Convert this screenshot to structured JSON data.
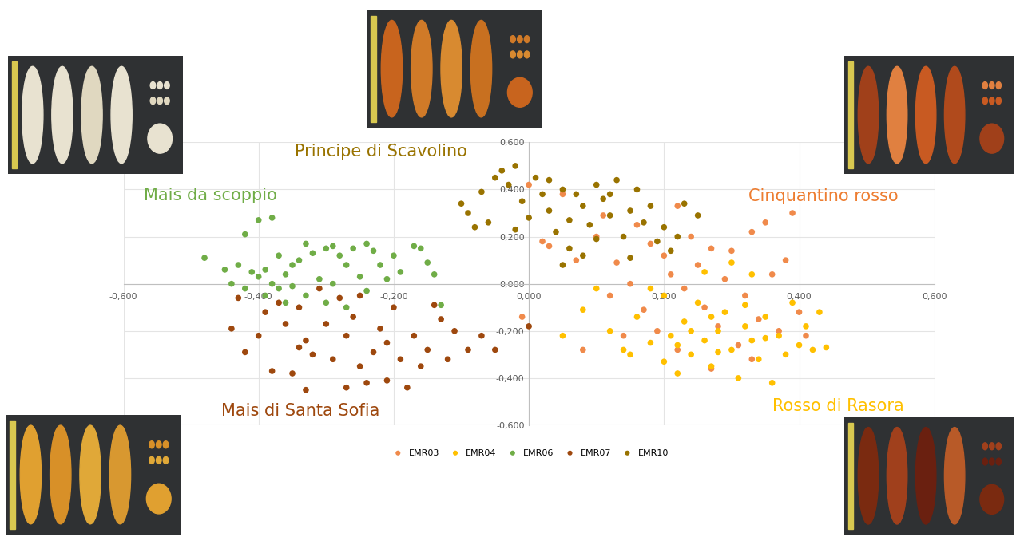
{
  "chart_data": {
    "type": "scatter",
    "xlim": [
      -0.6,
      0.6
    ],
    "ylim": [
      -0.6,
      0.6
    ],
    "xticks": [
      {
        "value": -0.6,
        "label": "-0,600"
      },
      {
        "value": -0.4,
        "label": "-0,400"
      },
      {
        "value": -0.2,
        "label": "-0,200"
      },
      {
        "value": 0.0,
        "label": "0,000"
      },
      {
        "value": 0.2,
        "label": "0,200"
      },
      {
        "value": 0.4,
        "label": "0,400"
      },
      {
        "value": 0.6,
        "label": "0,600"
      }
    ],
    "yticks": [
      {
        "value": -0.6,
        "label": "-0,600"
      },
      {
        "value": -0.4,
        "label": "-0,400"
      },
      {
        "value": -0.2,
        "label": "-0,200"
      },
      {
        "value": 0.0,
        "label": "0,000"
      },
      {
        "value": 0.2,
        "label": "0,200"
      },
      {
        "value": 0.4,
        "label": "0,400"
      },
      {
        "value": 0.6,
        "label": "0,600"
      }
    ],
    "grid": true,
    "legend": "lower center",
    "marker": "o",
    "annotations": [
      {
        "text": "Mais da scoppio",
        "color": "#70ad47"
      },
      {
        "text": "Principe di Scavolino",
        "color": "#997300"
      },
      {
        "text": "Cinquantino rosso",
        "color": "#ed7d31"
      },
      {
        "text": "Mais di Santa Sofia",
        "color": "#9e480e"
      },
      {
        "text": "Rosso di Rasora",
        "color": "#ffc000"
      }
    ],
    "series": [
      {
        "name": "EMR03",
        "color": "#f08a4b",
        "x": [
          0.0,
          0.02,
          0.05,
          0.07,
          0.08,
          0.1,
          0.12,
          0.13,
          0.15,
          0.17,
          0.18,
          0.2,
          0.21,
          0.22,
          0.23,
          0.24,
          0.25,
          0.26,
          0.27,
          0.28,
          0.29,
          0.3,
          0.31,
          0.32,
          0.33,
          0.34,
          0.35,
          0.36,
          0.37,
          0.38,
          0.39,
          0.4,
          0.41,
          0.19,
          0.22,
          0.16,
          0.11,
          -0.01,
          0.03,
          0.27,
          0.33,
          0.14
        ],
        "values": [
          0.42,
          0.18,
          0.38,
          0.1,
          -0.28,
          0.2,
          -0.05,
          0.09,
          0.0,
          -0.11,
          0.17,
          0.12,
          0.04,
          0.33,
          -0.02,
          0.2,
          0.08,
          -0.1,
          0.15,
          -0.18,
          0.02,
          0.14,
          -0.26,
          -0.05,
          0.22,
          -0.15,
          0.26,
          0.04,
          -0.2,
          0.1,
          0.3,
          -0.12,
          -0.22,
          -0.2,
          -0.28,
          0.25,
          0.29,
          -0.14,
          0.16,
          -0.36,
          -0.32,
          -0.22
        ]
      },
      {
        "name": "EMR04",
        "color": "#ffc000",
        "x": [
          0.05,
          0.08,
          0.1,
          0.12,
          0.14,
          0.16,
          0.18,
          0.2,
          0.21,
          0.22,
          0.23,
          0.24,
          0.25,
          0.26,
          0.27,
          0.28,
          0.29,
          0.3,
          0.31,
          0.32,
          0.33,
          0.34,
          0.35,
          0.36,
          0.37,
          0.38,
          0.39,
          0.4,
          0.41,
          0.42,
          0.43,
          0.44,
          0.3,
          0.26,
          0.2,
          0.15,
          0.24,
          0.28,
          0.32,
          0.35,
          0.22,
          0.27,
          0.33,
          0.18
        ],
        "values": [
          -0.22,
          -0.11,
          -0.02,
          -0.2,
          -0.28,
          -0.14,
          -0.25,
          -0.33,
          -0.22,
          -0.38,
          -0.16,
          -0.3,
          -0.08,
          -0.24,
          -0.35,
          -0.2,
          -0.12,
          -0.28,
          -0.4,
          -0.18,
          -0.24,
          -0.32,
          -0.14,
          -0.42,
          -0.22,
          -0.3,
          -0.08,
          -0.26,
          -0.18,
          -0.28,
          -0.12,
          -0.27,
          0.09,
          0.05,
          -0.05,
          -0.3,
          -0.2,
          -0.29,
          -0.09,
          -0.23,
          -0.26,
          -0.14,
          0.04,
          -0.02
        ]
      },
      {
        "name": "EMR06",
        "color": "#70ad47",
        "x": [
          -0.48,
          -0.44,
          -0.42,
          -0.4,
          -0.38,
          -0.41,
          -0.4,
          -0.39,
          -0.38,
          -0.37,
          -0.36,
          -0.35,
          -0.34,
          -0.33,
          -0.32,
          -0.31,
          -0.3,
          -0.29,
          -0.28,
          -0.27,
          -0.26,
          -0.25,
          -0.24,
          -0.23,
          -0.22,
          -0.21,
          -0.2,
          -0.19,
          -0.17,
          -0.16,
          -0.15,
          -0.14,
          -0.13,
          -0.43,
          -0.42,
          -0.39,
          -0.36,
          -0.33,
          -0.3,
          -0.27,
          -0.45,
          -0.37,
          -0.35,
          -0.29,
          -0.24
        ],
        "values": [
          0.11,
          0.0,
          0.21,
          0.27,
          0.28,
          0.05,
          0.03,
          0.06,
          0.0,
          -0.02,
          0.04,
          0.08,
          0.1,
          0.17,
          0.13,
          0.02,
          0.15,
          0.16,
          0.12,
          0.08,
          0.15,
          0.03,
          0.17,
          0.14,
          0.08,
          0.02,
          0.12,
          0.05,
          0.16,
          0.15,
          0.09,
          0.04,
          -0.09,
          0.08,
          -0.02,
          -0.05,
          -0.08,
          -0.05,
          -0.08,
          -0.1,
          0.06,
          0.12,
          -0.01,
          0.0,
          -0.03
        ]
      },
      {
        "name": "EMR07",
        "color": "#9e480e",
        "x": [
          -0.43,
          -0.44,
          -0.42,
          -0.4,
          -0.39,
          -0.37,
          -0.36,
          -0.35,
          -0.34,
          -0.33,
          -0.32,
          -0.31,
          -0.3,
          -0.29,
          -0.28,
          -0.27,
          -0.26,
          -0.25,
          -0.24,
          -0.23,
          -0.22,
          -0.21,
          -0.2,
          -0.19,
          -0.18,
          -0.17,
          -0.16,
          -0.15,
          -0.13,
          -0.12,
          -0.11,
          -0.09,
          -0.07,
          -0.14,
          -0.33,
          -0.27,
          -0.21,
          -0.38,
          -0.05,
          0.0,
          -0.34,
          -0.25
        ],
        "values": [
          -0.06,
          -0.19,
          -0.29,
          -0.22,
          -0.12,
          -0.08,
          -0.17,
          -0.38,
          -0.27,
          -0.24,
          -0.3,
          -0.02,
          -0.17,
          -0.32,
          -0.06,
          -0.22,
          -0.14,
          -0.35,
          -0.42,
          -0.29,
          -0.19,
          -0.25,
          -0.1,
          -0.32,
          -0.44,
          -0.22,
          -0.35,
          -0.28,
          -0.15,
          -0.32,
          -0.2,
          -0.28,
          -0.22,
          -0.09,
          -0.45,
          -0.44,
          -0.41,
          -0.37,
          -0.28,
          -0.18,
          -0.1,
          -0.05
        ]
      },
      {
        "name": "EMR10",
        "color": "#997300",
        "x": [
          -0.1,
          -0.09,
          -0.08,
          -0.07,
          -0.06,
          -0.05,
          -0.04,
          -0.03,
          -0.02,
          -0.01,
          0.0,
          0.01,
          0.02,
          0.03,
          0.04,
          0.05,
          0.06,
          0.07,
          0.08,
          0.09,
          0.1,
          0.11,
          0.12,
          0.13,
          0.14,
          0.15,
          0.16,
          0.17,
          0.18,
          0.19,
          0.2,
          0.21,
          0.22,
          0.23,
          0.25,
          0.05,
          0.1,
          -0.02,
          0.08,
          0.12,
          0.03,
          0.15,
          0.06
        ],
        "values": [
          0.34,
          0.3,
          0.24,
          0.39,
          0.26,
          0.45,
          0.48,
          0.42,
          0.5,
          0.35,
          0.28,
          0.45,
          0.38,
          0.31,
          0.22,
          0.4,
          0.15,
          0.38,
          0.33,
          0.25,
          0.42,
          0.36,
          0.29,
          0.44,
          0.2,
          0.31,
          0.4,
          0.26,
          0.33,
          0.18,
          0.24,
          0.14,
          0.2,
          0.34,
          0.29,
          0.08,
          0.19,
          0.23,
          0.12,
          0.38,
          0.44,
          0.11,
          0.27
        ]
      }
    ]
  }
}
